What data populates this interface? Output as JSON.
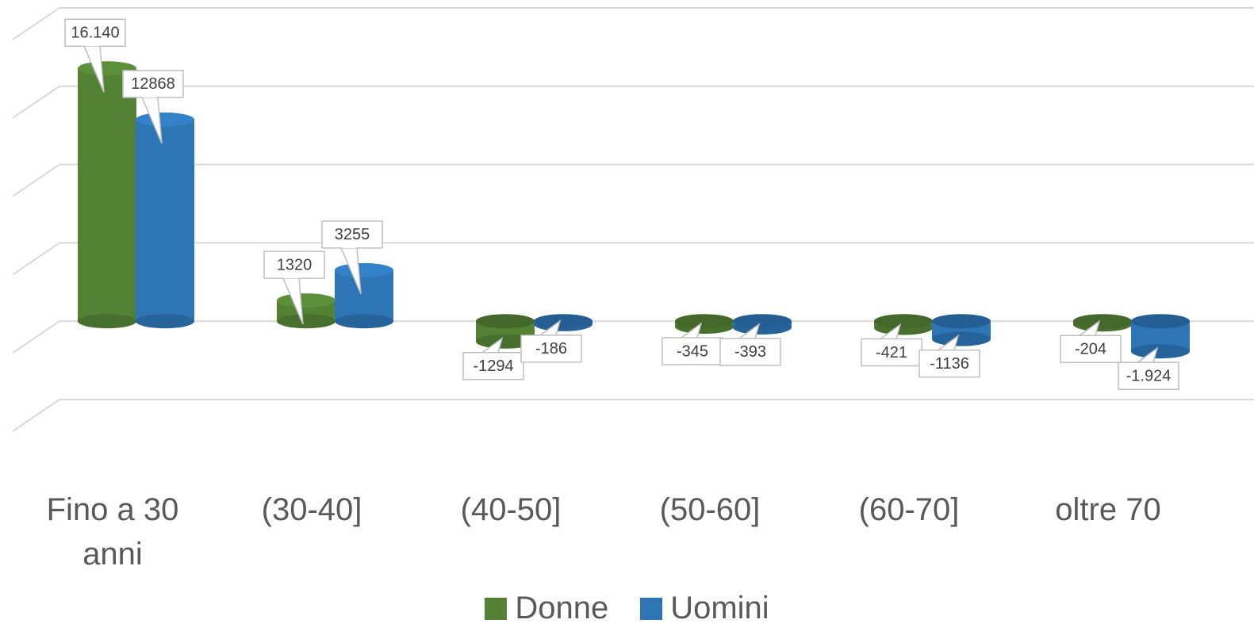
{
  "chart_data": {
    "type": "bar3d",
    "categories": [
      "Fino a 30 anni",
      "(30-40]",
      "(40-50]",
      "(50-60]",
      "(60-70]",
      "oltre 70"
    ],
    "series": [
      {
        "name": "Donne",
        "color": "#548235",
        "values": [
          16140,
          1320,
          -1294,
          -345,
          -421,
          -204
        ],
        "value_labels": [
          "16.140",
          "1320",
          "-1294",
          "-345",
          "-421",
          "-204"
        ]
      },
      {
        "name": "Uomini",
        "color": "#2e75b6",
        "values": [
          12868,
          3255,
          -186,
          -393,
          -1136,
          -1924
        ],
        "value_labels": [
          "12868",
          "3255",
          "-186",
          "-393",
          "-1136",
          "-1.924"
        ]
      }
    ],
    "ylim": [
      -5000,
      20000
    ],
    "yticks": [
      -5000,
      0,
      5000,
      10000,
      15000,
      20000
    ],
    "grid": true,
    "legend": "bottom"
  }
}
